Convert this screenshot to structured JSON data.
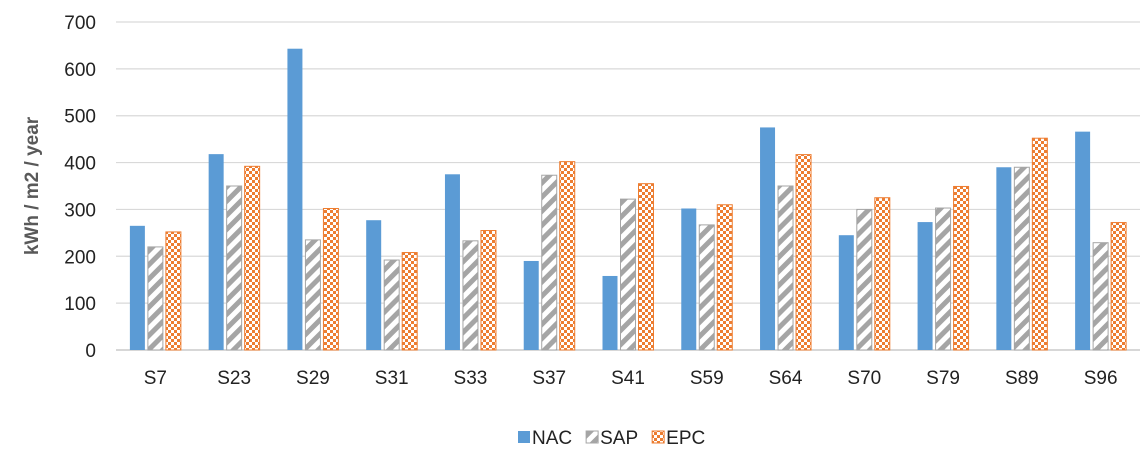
{
  "chart_data": {
    "type": "bar",
    "title": "",
    "xlabel": "",
    "ylabel": "kWh / m2 / year",
    "ylim": [
      0,
      700
    ],
    "yticks": [
      0,
      100,
      200,
      300,
      400,
      500,
      600,
      700
    ],
    "grid": true,
    "legend_position": "bottom",
    "categories": [
      "S7",
      "S23",
      "S29",
      "S31",
      "S33",
      "S37",
      "S41",
      "S59",
      "S64",
      "S70",
      "S79",
      "S89",
      "S96"
    ],
    "series": [
      {
        "name": "NAC",
        "color": "#5B9BD5",
        "pattern": "solid",
        "values": [
          265,
          418,
          643,
          277,
          375,
          190,
          158,
          302,
          475,
          245,
          273,
          390,
          466
        ]
      },
      {
        "name": "SAP",
        "color": "#A5A5A5",
        "pattern": "diagonal-stripes",
        "values": [
          220,
          350,
          235,
          192,
          233,
          373,
          322,
          267,
          350,
          300,
          303,
          390,
          229
        ]
      },
      {
        "name": "EPC",
        "color": "#ED7D31",
        "pattern": "checker",
        "values": [
          252,
          392,
          302,
          208,
          255,
          402,
          355,
          310,
          417,
          325,
          349,
          452,
          272
        ]
      }
    ]
  }
}
